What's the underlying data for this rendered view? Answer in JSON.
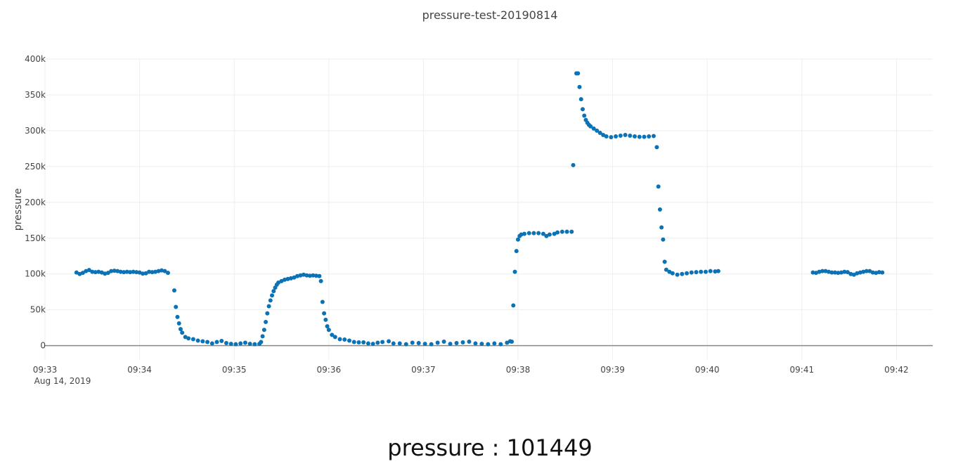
{
  "chart_data": {
    "type": "scatter",
    "title": "pressure-test-20190814",
    "xlabel": "",
    "ylabel": "pressure",
    "x_date_label": "Aug 14, 2019",
    "x_ticks": [
      "09:33",
      "09:34",
      "09:35",
      "09:36",
      "09:37",
      "09:38",
      "09:39",
      "09:40",
      "09:41",
      "09:42"
    ],
    "y_ticks": [
      "0",
      "50k",
      "100k",
      "150k",
      "200k",
      "250k",
      "300k",
      "350k",
      "400k"
    ],
    "xlim": [
      "09:33:00",
      "09:42:23"
    ],
    "ylim": [
      -20000,
      400000
    ],
    "grid": true,
    "marker_color": "#0a72b5",
    "series": [
      {
        "name": "",
        "points": [
          [
            "09:33:20",
            102000
          ],
          [
            "09:33:22",
            100000
          ],
          [
            "09:33:24",
            101500
          ],
          [
            "09:33:26",
            104000
          ],
          [
            "09:33:28",
            105500
          ],
          [
            "09:33:30",
            103000
          ],
          [
            "09:33:32",
            102500
          ],
          [
            "09:33:34",
            103000
          ],
          [
            "09:33:36",
            102000
          ],
          [
            "09:33:38",
            100500
          ],
          [
            "09:33:40",
            101500
          ],
          [
            "09:33:42",
            104000
          ],
          [
            "09:33:44",
            104500
          ],
          [
            "09:33:46",
            104000
          ],
          [
            "09:33:48",
            103000
          ],
          [
            "09:33:50",
            102500
          ],
          [
            "09:33:52",
            103000
          ],
          [
            "09:33:54",
            102500
          ],
          [
            "09:33:56",
            103000
          ],
          [
            "09:33:58",
            102500
          ],
          [
            "09:34:00",
            102000
          ],
          [
            "09:34:02",
            100500
          ],
          [
            "09:34:04",
            101000
          ],
          [
            "09:34:06",
            103000
          ],
          [
            "09:34:08",
            102500
          ],
          [
            "09:34:10",
            103000
          ],
          [
            "09:34:12",
            104000
          ],
          [
            "09:34:14",
            105000
          ],
          [
            "09:34:16",
            104000
          ],
          [
            "09:34:18",
            101500
          ],
          [
            "09:34:22",
            77000
          ],
          [
            "09:34:23",
            54000
          ],
          [
            "09:34:24",
            40000
          ],
          [
            "09:34:25",
            31000
          ],
          [
            "09:34:26",
            23000
          ],
          [
            "09:34:27",
            18000
          ],
          [
            "09:34:29",
            12000
          ],
          [
            "09:34:31",
            10000
          ],
          [
            "09:34:34",
            9000
          ],
          [
            "09:34:37",
            7000
          ],
          [
            "09:34:40",
            6000
          ],
          [
            "09:34:43",
            5000
          ],
          [
            "09:34:46",
            3000
          ],
          [
            "09:34:49",
            5000
          ],
          [
            "09:34:52",
            6500
          ],
          [
            "09:34:55",
            3500
          ],
          [
            "09:34:58",
            2500
          ],
          [
            "09:35:01",
            2000
          ],
          [
            "09:35:04",
            3000
          ],
          [
            "09:35:07",
            4000
          ],
          [
            "09:35:10",
            2500
          ],
          [
            "09:35:13",
            2000
          ],
          [
            "09:35:16",
            2500
          ],
          [
            "09:35:17",
            5000
          ],
          [
            "09:35:18",
            13000
          ],
          [
            "09:35:19",
            22000
          ],
          [
            "09:35:20",
            33000
          ],
          [
            "09:35:21",
            45000
          ],
          [
            "09:35:22",
            55000
          ],
          [
            "09:35:23",
            63000
          ],
          [
            "09:35:24",
            70000
          ],
          [
            "09:35:25",
            76000
          ],
          [
            "09:35:26",
            81000
          ],
          [
            "09:35:27",
            85000
          ],
          [
            "09:35:28",
            88000
          ],
          [
            "09:35:30",
            90000
          ],
          [
            "09:35:32",
            92000
          ],
          [
            "09:35:34",
            93000
          ],
          [
            "09:35:36",
            94000
          ],
          [
            "09:35:38",
            95000
          ],
          [
            "09:35:40",
            97000
          ],
          [
            "09:35:42",
            98000
          ],
          [
            "09:35:44",
            99000
          ],
          [
            "09:35:46",
            98000
          ],
          [
            "09:35:48",
            97500
          ],
          [
            "09:35:50",
            98000
          ],
          [
            "09:35:52",
            97500
          ],
          [
            "09:35:54",
            97000
          ],
          [
            "09:35:55",
            90000
          ],
          [
            "09:35:56",
            61000
          ],
          [
            "09:35:57",
            45000
          ],
          [
            "09:35:58",
            36000
          ],
          [
            "09:35:59",
            27000
          ],
          [
            "09:36:00",
            22000
          ],
          [
            "09:36:02",
            15000
          ],
          [
            "09:36:04",
            12000
          ],
          [
            "09:36:07",
            9000
          ],
          [
            "09:36:10",
            8500
          ],
          [
            "09:36:13",
            7000
          ],
          [
            "09:36:16",
            5000
          ],
          [
            "09:36:19",
            4500
          ],
          [
            "09:36:22",
            4500
          ],
          [
            "09:36:25",
            3000
          ],
          [
            "09:36:28",
            2500
          ],
          [
            "09:36:31",
            4000
          ],
          [
            "09:36:34",
            5000
          ],
          [
            "09:36:38",
            6000
          ],
          [
            "09:36:41",
            3000
          ],
          [
            "09:36:45",
            3000
          ],
          [
            "09:36:49",
            2000
          ],
          [
            "09:36:53",
            4000
          ],
          [
            "09:36:57",
            3500
          ],
          [
            "09:37:01",
            2500
          ],
          [
            "09:37:05",
            2000
          ],
          [
            "09:37:09",
            4000
          ],
          [
            "09:37:13",
            5500
          ],
          [
            "09:37:17",
            2500
          ],
          [
            "09:37:21",
            3500
          ],
          [
            "09:37:25",
            4500
          ],
          [
            "09:37:29",
            5500
          ],
          [
            "09:37:33",
            3000
          ],
          [
            "09:37:37",
            2500
          ],
          [
            "09:37:41",
            2000
          ],
          [
            "09:37:45",
            3000
          ],
          [
            "09:37:49",
            2000
          ],
          [
            "09:37:53",
            4000
          ],
          [
            "09:37:55",
            6000
          ],
          [
            "09:37:56",
            5500
          ],
          [
            "09:37:57",
            56000
          ],
          [
            "09:37:58",
            103000
          ],
          [
            "09:37:59",
            132000
          ],
          [
            "09:38:00",
            148000
          ],
          [
            "09:38:01",
            153000
          ],
          [
            "09:38:02",
            155000
          ],
          [
            "09:38:04",
            156000
          ],
          [
            "09:38:07",
            157000
          ],
          [
            "09:38:10",
            157000
          ],
          [
            "09:38:13",
            157000
          ],
          [
            "09:38:16",
            156000
          ],
          [
            "09:38:18",
            153000
          ],
          [
            "09:38:20",
            155000
          ],
          [
            "09:38:23",
            156000
          ],
          [
            "09:38:25",
            158000
          ],
          [
            "09:38:28",
            159000
          ],
          [
            "09:38:31",
            159000
          ],
          [
            "09:38:34",
            159000
          ],
          [
            "09:38:35",
            252000
          ],
          [
            "09:38:37",
            380000
          ],
          [
            "09:38:38",
            380000
          ],
          [
            "09:38:39",
            361000
          ],
          [
            "09:38:40",
            344000
          ],
          [
            "09:38:41",
            330000
          ],
          [
            "09:38:42",
            321000
          ],
          [
            "09:38:43",
            315000
          ],
          [
            "09:38:44",
            311000
          ],
          [
            "09:38:45",
            308000
          ],
          [
            "09:38:46",
            306000
          ],
          [
            "09:38:48",
            303000
          ],
          [
            "09:38:50",
            300000
          ],
          [
            "09:38:52",
            297000
          ],
          [
            "09:38:54",
            294000
          ],
          [
            "09:38:56",
            292000
          ],
          [
            "09:38:59",
            291000
          ],
          [
            "09:39:02",
            292000
          ],
          [
            "09:39:05",
            293000
          ],
          [
            "09:39:08",
            294000
          ],
          [
            "09:39:11",
            293000
          ],
          [
            "09:39:14",
            292000
          ],
          [
            "09:39:17",
            291500
          ],
          [
            "09:39:20",
            291500
          ],
          [
            "09:39:23",
            292000
          ],
          [
            "09:39:26",
            292500
          ],
          [
            "09:39:28",
            277000
          ],
          [
            "09:39:29",
            222000
          ],
          [
            "09:39:30",
            190000
          ],
          [
            "09:39:31",
            165000
          ],
          [
            "09:39:32",
            148000
          ],
          [
            "09:39:33",
            117000
          ],
          [
            "09:39:34",
            106000
          ],
          [
            "09:39:36",
            103000
          ],
          [
            "09:39:38",
            101000
          ],
          [
            "09:39:41",
            99000
          ],
          [
            "09:39:44",
            100000
          ],
          [
            "09:39:47",
            101000
          ],
          [
            "09:39:50",
            102000
          ],
          [
            "09:39:53",
            102500
          ],
          [
            "09:39:56",
            103000
          ],
          [
            "09:39:59",
            103000
          ],
          [
            "09:40:02",
            104000
          ],
          [
            "09:40:05",
            103500
          ],
          [
            "09:40:07",
            104000
          ],
          [
            "09:41:07",
            102000
          ],
          [
            "09:41:09",
            101500
          ],
          [
            "09:41:11",
            103000
          ],
          [
            "09:41:13",
            104000
          ],
          [
            "09:41:15",
            104000
          ],
          [
            "09:41:17",
            103000
          ],
          [
            "09:41:19",
            102000
          ],
          [
            "09:41:21",
            102000
          ],
          [
            "09:41:23",
            101500
          ],
          [
            "09:41:25",
            102000
          ],
          [
            "09:41:27",
            103000
          ],
          [
            "09:41:29",
            102500
          ],
          [
            "09:41:31",
            100000
          ],
          [
            "09:41:33",
            99000
          ],
          [
            "09:41:35",
            101000
          ],
          [
            "09:41:37",
            102000
          ],
          [
            "09:41:39",
            103000
          ],
          [
            "09:41:41",
            104000
          ],
          [
            "09:41:43",
            104000
          ],
          [
            "09:41:45",
            102000
          ],
          [
            "09:41:47",
            101500
          ],
          [
            "09:41:49",
            102500
          ],
          [
            "09:41:51",
            102000
          ]
        ]
      }
    ]
  },
  "readout": {
    "text": "pressure : 101449"
  }
}
